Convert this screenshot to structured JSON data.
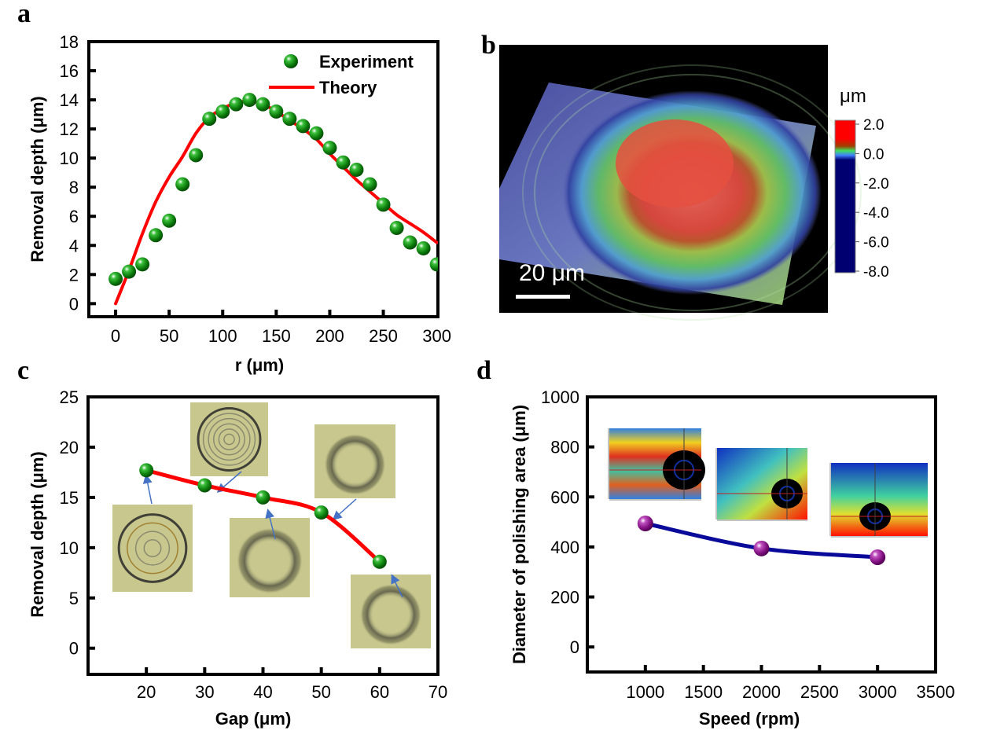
{
  "chart_data": [
    {
      "panel_label": "a",
      "type": "scatter+line",
      "xlabel": "r (μm)",
      "ylabel": "Removal depth (μm)",
      "xlim": [
        -25,
        301
      ],
      "ylim": [
        -0.9,
        18
      ],
      "xticks": [
        0,
        50,
        100,
        150,
        200,
        250,
        300
      ],
      "yticks": [
        0,
        2,
        4,
        6,
        8,
        10,
        12,
        14,
        16,
        18
      ],
      "grid": false,
      "legend_position": "top-right",
      "series": [
        {
          "name": "Experiment",
          "kind": "scatter",
          "color": "#0a8a0a",
          "x": [
            0,
            12.5,
            25,
            37.5,
            50,
            62.5,
            75,
            87.5,
            100,
            112.5,
            125,
            137.5,
            150,
            162.5,
            175,
            187.5,
            200,
            212.5,
            225,
            237.5,
            250,
            262.5,
            275,
            287.5,
            300
          ],
          "y": [
            1.7,
            2.2,
            2.7,
            4.7,
            5.7,
            8.2,
            10.2,
            12.7,
            13.2,
            13.7,
            14.0,
            13.7,
            13.2,
            12.7,
            12.2,
            11.7,
            10.7,
            9.7,
            9.2,
            8.2,
            6.8,
            5.2,
            4.2,
            3.8,
            2.7
          ]
        },
        {
          "name": "Theory",
          "kind": "line",
          "color": "#ff0000",
          "x": [
            0,
            12.5,
            25,
            37.5,
            50,
            62.5,
            75,
            87.5,
            100,
            112.5,
            125,
            137.5,
            150,
            162.5,
            175,
            187.5,
            200,
            212.5,
            225,
            237.5,
            250,
            262.5,
            275,
            287.5,
            300
          ],
          "y": [
            0,
            2.3,
            4.8,
            7.0,
            8.7,
            10.1,
            11.7,
            12.8,
            13.4,
            13.8,
            13.9,
            13.7,
            13.2,
            12.6,
            12.0,
            11.3,
            10.3,
            9.4,
            8.5,
            7.7,
            6.9,
            6.1,
            5.5,
            4.9,
            4.2
          ]
        }
      ]
    },
    {
      "panel_label": "c",
      "type": "line",
      "xlabel": "Gap (μm)",
      "ylabel": "Removal depth (μm)",
      "xlim": [
        10,
        70
      ],
      "ylim": [
        -2.6,
        25
      ],
      "xticks": [
        20,
        30,
        40,
        50,
        60,
        70
      ],
      "yticks": [
        0,
        5,
        10,
        15,
        20,
        25
      ],
      "grid": false,
      "series": [
        {
          "kind": "line+markers",
          "color": "#ff0000",
          "marker_color": "#0a8a0a",
          "x": [
            20,
            30,
            40,
            50,
            60
          ],
          "y": [
            17.7,
            16.2,
            15.0,
            13.5,
            8.6
          ]
        }
      ],
      "insets": "optical micrographs of polished spots, one per data point"
    },
    {
      "panel_label": "d",
      "type": "line",
      "xlabel": "Speed (rpm)",
      "ylabel": "Diameter of polishing area (μm)",
      "xlim": [
        500,
        3500
      ],
      "ylim": [
        -100,
        1000
      ],
      "xticks": [
        1000,
        1500,
        2000,
        2500,
        3000,
        3500
      ],
      "yticks": [
        0,
        200,
        400,
        600,
        800,
        1000
      ],
      "grid": false,
      "series": [
        {
          "kind": "line+markers",
          "color": "#0a0a9a",
          "marker_color": "#8a1a8a",
          "x": [
            1000,
            2000,
            3000
          ],
          "y": [
            494,
            394,
            359
          ]
        }
      ],
      "insets": "surface profile maps for 1000, 2000, 3000 rpm"
    }
  ],
  "panel_b": {
    "panel_label": "b",
    "unit": "μm",
    "colorbar_labels": [
      "2.0",
      "0.0",
      "-2.0",
      "-4.0",
      "-6.0",
      "-8.0"
    ],
    "colorbar_colors": [
      "#ff0000",
      "#20d040",
      "#2040ff",
      "#000070"
    ],
    "scale_bar": "20 μm"
  }
}
